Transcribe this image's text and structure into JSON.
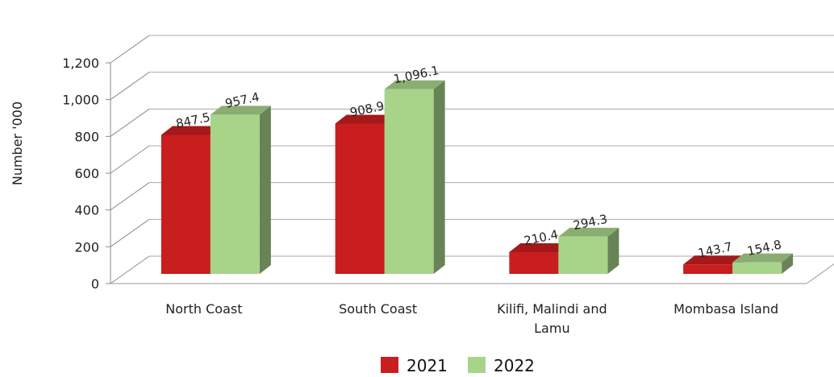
{
  "chart_data": {
    "type": "bar",
    "categories": [
      "North Coast",
      "South Coast",
      "Kilifi, Malindi and Lamu",
      "Mombasa Island"
    ],
    "series": [
      {
        "name": "2021",
        "values": [
          847.5,
          908.9,
          210.4,
          143.7
        ],
        "labels": [
          "847.5",
          "908.9",
          "210.4",
          "143.7"
        ],
        "color": "#c81e1e"
      },
      {
        "name": "2022",
        "values": [
          957.4,
          1096.1,
          294.3,
          154.8
        ],
        "labels": [
          "957.4",
          "1,096.1",
          "294.3",
          "154.8"
        ],
        "color": "#a8d48a"
      }
    ],
    "title": "",
    "xlabel": "",
    "ylabel": "Number '000",
    "ylim": [
      0,
      1200
    ],
    "yticks": [
      0,
      200,
      400,
      600,
      800,
      1000,
      1200
    ],
    "ytick_labels": [
      "0",
      "200",
      "400",
      "600",
      "800",
      "1,000",
      "1,200"
    ],
    "grid": true,
    "legend": "bottom",
    "style": "3d-clustered-column"
  }
}
